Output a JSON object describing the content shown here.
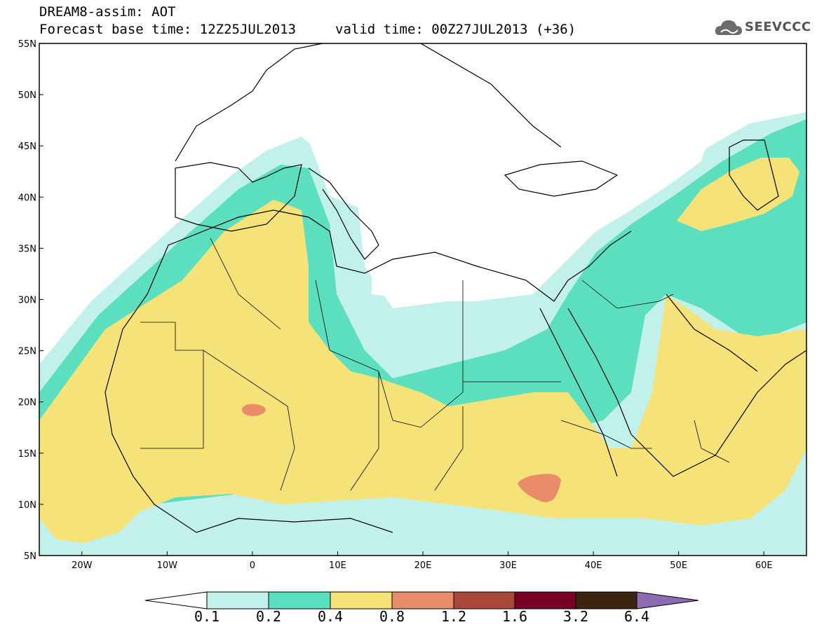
{
  "header": {
    "model_title": "DREAM8-assim: AOT",
    "base_time_label": "Forecast base time: 12Z25JUL2013",
    "valid_time_label": "valid time: 00Z27JUL2013 (+36)",
    "logo_text": "SEEVCCC"
  },
  "map": {
    "lon_range": [
      -25,
      65
    ],
    "lat_range": [
      5,
      55
    ],
    "lon_ticks": [
      {
        "value": -20,
        "label": "20W"
      },
      {
        "value": -10,
        "label": "10W"
      },
      {
        "value": 0,
        "label": "0"
      },
      {
        "value": 10,
        "label": "10E"
      },
      {
        "value": 20,
        "label": "20E"
      },
      {
        "value": 30,
        "label": "30E"
      },
      {
        "value": 40,
        "label": "40E"
      },
      {
        "value": 50,
        "label": "50E"
      },
      {
        "value": 60,
        "label": "60E"
      }
    ],
    "lat_ticks": [
      {
        "value": 5,
        "label": "5N"
      },
      {
        "value": 10,
        "label": "10N"
      },
      {
        "value": 15,
        "label": "15N"
      },
      {
        "value": 20,
        "label": "20N"
      },
      {
        "value": 25,
        "label": "25N"
      },
      {
        "value": 30,
        "label": "30N"
      },
      {
        "value": 35,
        "label": "35N"
      },
      {
        "value": 40,
        "label": "40N"
      },
      {
        "value": 45,
        "label": "45N"
      },
      {
        "value": 50,
        "label": "50N"
      },
      {
        "value": 55,
        "label": "55N"
      }
    ]
  },
  "colorbar": {
    "boundaries": [
      "0.1",
      "0.2",
      "0.4",
      "0.8",
      "1.2",
      "1.6",
      "3.2",
      "6.4"
    ],
    "colors": {
      "under": "#ffffff",
      "c1": "#c2f0ea",
      "c2": "#5cdfbe",
      "c3": "#f5e37a",
      "c4": "#e98c6a",
      "c5": "#a9473a",
      "c6": "#7a0025",
      "c7": "#3d2410",
      "over": "#8c6bb1"
    }
  },
  "legend_levels": [
    {
      "range": "0.1-0.2",
      "color": "#c2f0ea"
    },
    {
      "range": "0.2-0.4",
      "color": "#5cdfbe"
    },
    {
      "range": "0.4-0.8",
      "color": "#f5e37a"
    },
    {
      "range": "0.8-1.2",
      "color": "#e98c6a"
    }
  ]
}
